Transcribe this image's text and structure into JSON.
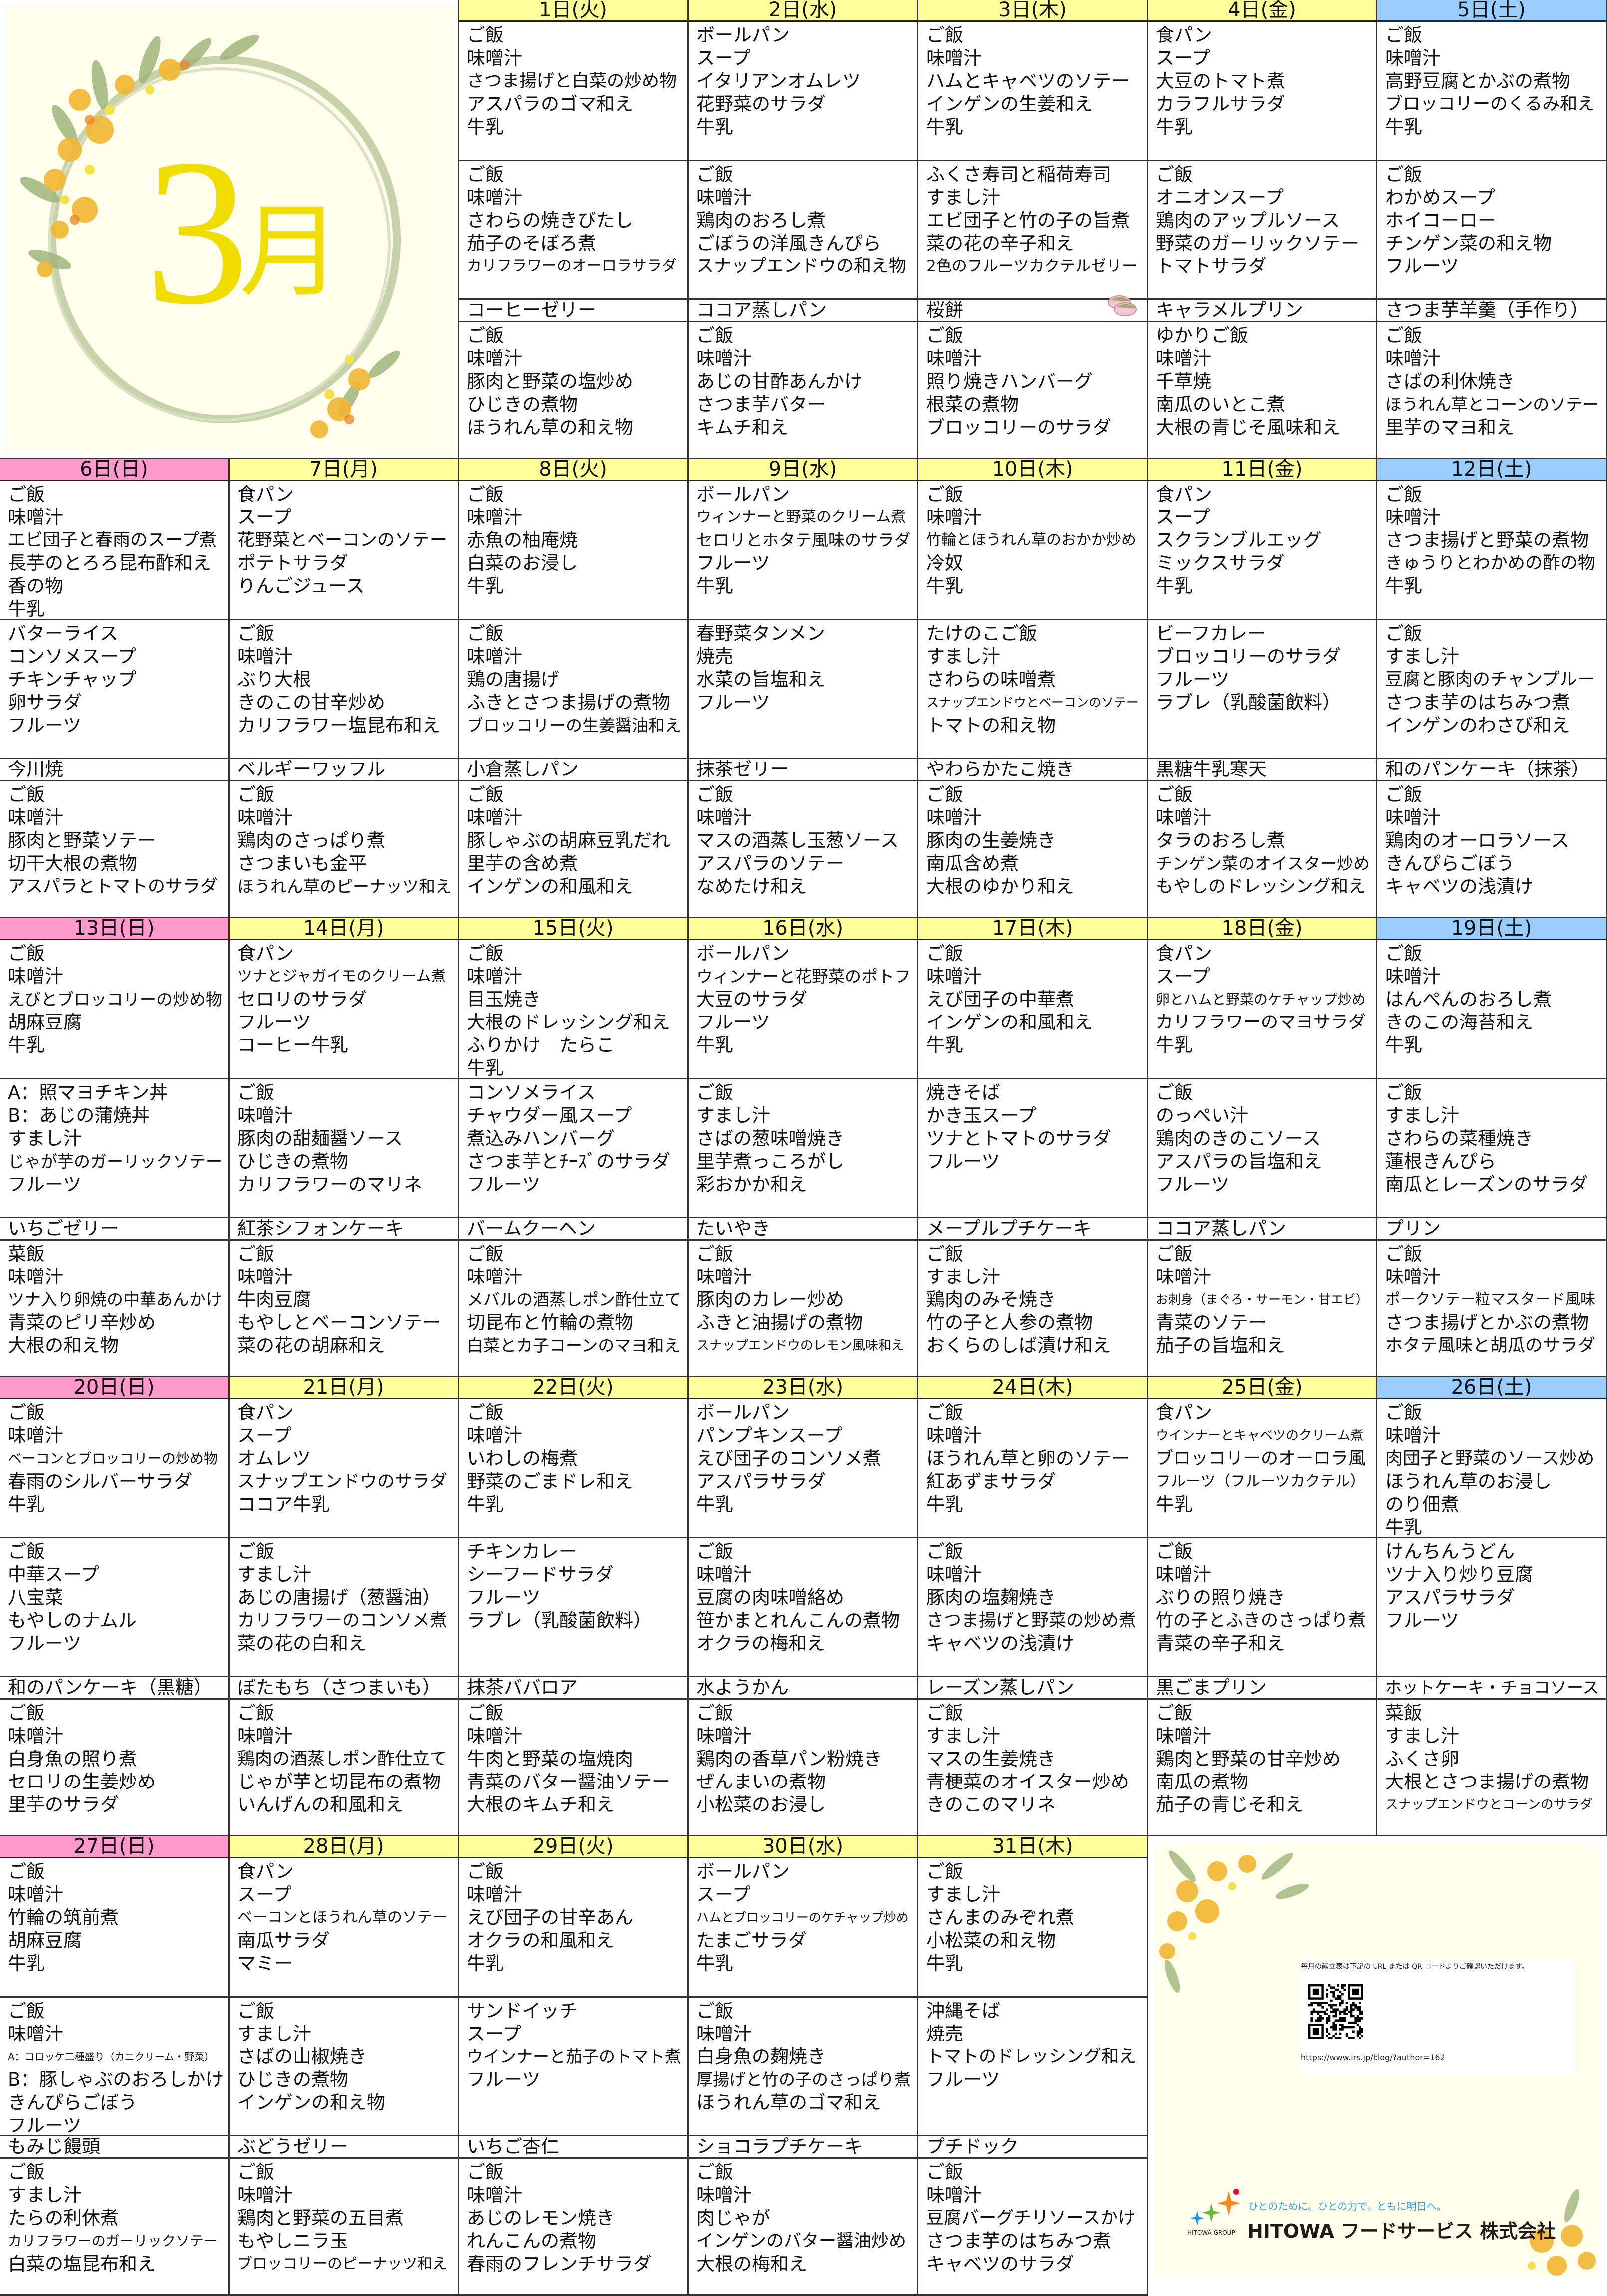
{
  "title": {
    "month_number": "3",
    "month_kanji": "月"
  },
  "colors": {
    "weekday_header": "#FFFF99",
    "sunday_header": "#FF99CC",
    "saturday_header": "#99CCFF",
    "month_text": "#F0DE00",
    "tagline": "#3AA0E0"
  },
  "weeks": [
    {
      "days": [
        {
          "header": "1日(火)",
          "b1": [
            "ご飯",
            "味噌汁",
            "さつま揚げと白菜の炒め物",
            "アスパラのゴマ和え",
            "牛乳"
          ],
          "b2": [
            "ご飯",
            "味噌汁",
            "さわらの焼きびたし",
            "茄子のそぼろ煮",
            "カリフラワーのオーロラサラダ"
          ],
          "snack": "コーヒーゼリー",
          "b3": [
            "ご飯",
            "味噌汁",
            "豚肉と野菜の塩炒め",
            "ひじきの煮物",
            "ほうれん草の和え物"
          ]
        },
        {
          "header": "2日(水)",
          "b1": [
            "ボールパン",
            "スープ",
            "イタリアンオムレツ",
            "花野菜のサラダ",
            "牛乳"
          ],
          "b2": [
            "ご飯",
            "味噌汁",
            "鶏肉のおろし煮",
            "ごぼうの洋風きんぴら",
            "スナップエンドウの和え物"
          ],
          "snack": "ココア蒸しパン",
          "b3": [
            "ご飯",
            "味噌汁",
            "あじの甘酢あんかけ",
            "さつま芋バター",
            "キムチ和え"
          ]
        },
        {
          "header": "3日(木)",
          "b1": [
            "ご飯",
            "味噌汁",
            "ハムとキャベツのソテー",
            "インゲンの生姜和え",
            "牛乳"
          ],
          "b2": [
            "ふくさ寿司と稲荷寿司",
            "すまし汁",
            "エビ団子と竹の子の旨煮",
            "菜の花の辛子和え",
            "2色のフルーツカクテルゼリー"
          ],
          "snack": "桜餅",
          "b3": [
            "ご飯",
            "味噌汁",
            "照り焼きハンバーグ",
            "根菜の煮物",
            "ブロッコリーのサラダ"
          ]
        },
        {
          "header": "4日(金)",
          "b1": [
            "食パン",
            "スープ",
            "大豆のトマト煮",
            "カラフルサラダ",
            "牛乳"
          ],
          "b2": [
            "ご飯",
            "オニオンスープ",
            "鶏肉のアップルソース",
            "野菜のガーリックソテー",
            "トマトサラダ"
          ],
          "snack": "キャラメルプリン",
          "b3": [
            "ゆかりご飯",
            "味噌汁",
            "千草焼",
            "南瓜のいとこ煮",
            "大根の青じそ風味和え"
          ]
        },
        {
          "header": "5日(土)",
          "b1": [
            "ご飯",
            "味噌汁",
            "高野豆腐とかぶの煮物",
            "ブロッコリーのくるみ和え",
            "牛乳"
          ],
          "b2": [
            "ご飯",
            "わかめスープ",
            "ホイコーロー",
            "チンゲン菜の和え物",
            "フルーツ"
          ],
          "snack": "さつま芋羊羹（手作り）",
          "b3": [
            "ご飯",
            "味噌汁",
            "さばの利休焼き",
            "ほうれん草とコーンのソテー",
            "里芋のマヨ和え"
          ]
        }
      ]
    },
    {
      "days": [
        {
          "header": "6日(日)",
          "b1": [
            "ご飯",
            "味噌汁",
            "エビ団子と春雨のスープ煮",
            "長芋のとろろ昆布酢和え",
            "香の物",
            "牛乳"
          ],
          "b2": [
            "バターライス",
            "コンソメスープ",
            "チキンチャップ",
            "卵サラダ",
            "フルーツ"
          ],
          "snack": "今川焼",
          "b3": [
            "ご飯",
            "味噌汁",
            "豚肉と野菜ソテー",
            "切干大根の煮物",
            "アスパラとトマトのサラダ"
          ]
        },
        {
          "header": "7日(月)",
          "b1": [
            "食パン",
            "スープ",
            "花野菜とベーコンのソテー",
            "ポテトサラダ",
            "りんごジュース"
          ],
          "b2": [
            "ご飯",
            "味噌汁",
            "ぶり大根",
            "きのこの甘辛炒め",
            "カリフラワー塩昆布和え"
          ],
          "snack": "ベルギーワッフル",
          "b3": [
            "ご飯",
            "味噌汁",
            "鶏肉のさっぱり煮",
            "さつまいも金平",
            "ほうれん草のピーナッツ和え"
          ]
        },
        {
          "header": "8日(火)",
          "b1": [
            "ご飯",
            "味噌汁",
            "赤魚の柚庵焼",
            "白菜のお浸し",
            "牛乳"
          ],
          "b2": [
            "ご飯",
            "味噌汁",
            "鶏の唐揚げ",
            "ふきとさつま揚げの煮物",
            "ブロッコリーの生姜醤油和え"
          ],
          "snack": "小倉蒸しパン",
          "b3": [
            "ご飯",
            "味噌汁",
            "豚しゃぶの胡麻豆乳だれ",
            "里芋の含め煮",
            "インゲンの和風和え"
          ]
        },
        {
          "header": "9日(水)",
          "b1": [
            "ボールパン",
            "ウィンナーと野菜のクリーム煮",
            "セロリとホタテ風味のサラダ",
            "フルーツ",
            "牛乳"
          ],
          "b2": [
            "春野菜タンメン",
            "焼売",
            "水菜の旨塩和え",
            "フルーツ"
          ],
          "snack": "抹茶ゼリー",
          "b3": [
            "ご飯",
            "味噌汁",
            "マスの酒蒸し玉葱ソース",
            "アスパラのソテー",
            "なめたけ和え"
          ]
        },
        {
          "header": "10日(木)",
          "b1": [
            "ご飯",
            "味噌汁",
            "竹輪とほうれん草のおかか炒め",
            "冷奴",
            "牛乳"
          ],
          "b2": [
            "たけのこご飯",
            "すまし汁",
            "さわらの味噌煮",
            "スナップエンドウとベーコンのソテー",
            "トマトの和え物"
          ],
          "snack": "やわらかたこ焼き",
          "b3": [
            "ご飯",
            "味噌汁",
            "豚肉の生姜焼き",
            "南瓜含め煮",
            "大根のゆかり和え"
          ]
        },
        {
          "header": "11日(金)",
          "b1": [
            "食パン",
            "スープ",
            "スクランブルエッグ",
            "ミックスサラダ",
            "牛乳"
          ],
          "b2": [
            "ビーフカレー",
            "ブロッコリーのサラダ",
            "フルーツ",
            "ラブレ（乳酸菌飲料）"
          ],
          "snack": "黒糖牛乳寒天",
          "b3": [
            "ご飯",
            "味噌汁",
            "タラのおろし煮",
            "チンゲン菜のオイスター炒め",
            "もやしのドレッシング和え"
          ]
        },
        {
          "header": "12日(土)",
          "b1": [
            "ご飯",
            "味噌汁",
            "さつま揚げと野菜の煮物",
            "きゅうりとわかめの酢の物",
            "牛乳"
          ],
          "b2": [
            "ご飯",
            "すまし汁",
            "豆腐と豚肉のチャンプルー",
            "さつま芋のはちみつ煮",
            "インゲンのわさび和え"
          ],
          "snack": "和のパンケーキ（抹茶）",
          "b3": [
            "ご飯",
            "味噌汁",
            "鶏肉のオーロラソース",
            "きんぴらごぼう",
            "キャベツの浅漬け"
          ]
        }
      ]
    },
    {
      "days": [
        {
          "header": "13日(日)",
          "b1": [
            "ご飯",
            "味噌汁",
            "えびとブロッコリーの炒め物",
            "胡麻豆腐",
            "牛乳"
          ],
          "b2": [
            "A：照マヨチキン丼",
            "B：あじの蒲焼丼",
            "すまし汁",
            "じゃが芋のガーリックソテー",
            "フルーツ"
          ],
          "snack": "いちごゼリー",
          "b3": [
            "菜飯",
            "味噌汁",
            "ツナ入り卵焼の中華あんかけ",
            "青菜のピリ辛炒め",
            "大根の和え物"
          ]
        },
        {
          "header": "14日(月)",
          "b1": [
            "食パン",
            "ツナとジャガイモのクリーム煮",
            "セロリのサラダ",
            "フルーツ",
            "コーヒー牛乳"
          ],
          "b2": [
            "ご飯",
            "味噌汁",
            "豚肉の甜麺醤ソース",
            "ひじきの煮物",
            "カリフラワーのマリネ"
          ],
          "snack": "紅茶シフォンケーキ",
          "b3": [
            "ご飯",
            "味噌汁",
            "牛肉豆腐",
            "もやしとベーコンソテー",
            "菜の花の胡麻和え"
          ]
        },
        {
          "header": "15日(火)",
          "b1": [
            "ご飯",
            "味噌汁",
            "目玉焼き",
            "大根のドレッシング和え",
            "ふりかけ　たらこ",
            "牛乳"
          ],
          "b2": [
            "コンソメライス",
            "チャウダー風スープ",
            "煮込みハンバーグ",
            "さつま芋とﾁｰｽﾞのサラダ",
            "フルーツ"
          ],
          "snack": "バームクーヘン",
          "b3": [
            "ご飯",
            "味噌汁",
            "メバルの酒蒸しポン酢仕立て",
            "切昆布と竹輪の煮物",
            "白菜とカ子コーンのマヨ和え"
          ]
        },
        {
          "header": "16日(水)",
          "b1": [
            "ボールパン",
            "ウィンナーと花野菜のポトフ",
            "大豆のサラダ",
            "フルーツ",
            "牛乳"
          ],
          "b2": [
            "ご飯",
            "すまし汁",
            "さばの葱味噌焼き",
            "里芋煮っころがし",
            "彩おかか和え"
          ],
          "snack": "たいやき",
          "b3": [
            "ご飯",
            "味噌汁",
            "豚肉のカレー炒め",
            "ふきと油揚げの煮物",
            "スナップエンドウのレモン風味和え"
          ]
        },
        {
          "header": "17日(木)",
          "b1": [
            "ご飯",
            "味噌汁",
            "えび団子の中華煮",
            "インゲンの和風和え",
            "牛乳"
          ],
          "b2": [
            "焼きそば",
            "かき玉スープ",
            "ツナとトマトのサラダ",
            "フルーツ"
          ],
          "snack": "メープルプチケーキ",
          "b3": [
            "ご飯",
            "すまし汁",
            "鶏肉のみそ焼き",
            "竹の子と人参の煮物",
            "おくらのしば漬け和え"
          ]
        },
        {
          "header": "18日(金)",
          "b1": [
            "食パン",
            "スープ",
            "卵とハムと野菜のケチャップ炒め",
            "カリフラワーのマヨサラダ",
            "牛乳"
          ],
          "b2": [
            "ご飯",
            "のっぺい汁",
            "鶏肉のきのこソース",
            "アスパラの旨塩和え",
            "フルーツ"
          ],
          "snack": "ココア蒸しパン",
          "b3": [
            "ご飯",
            "味噌汁",
            "お刺身（まぐろ・サーモン・甘エビ）",
            "青菜のソテー",
            "茄子の旨塩和え"
          ]
        },
        {
          "header": "19日(土)",
          "b1": [
            "ご飯",
            "味噌汁",
            "はんぺんのおろし煮",
            "きのこの海苔和え",
            "牛乳"
          ],
          "b2": [
            "ご飯",
            "すまし汁",
            "さわらの菜種焼き",
            "蓮根きんぴら",
            "南瓜とレーズンのサラダ"
          ],
          "snack": "プリン",
          "b3": [
            "ご飯",
            "味噌汁",
            "ポークソテー粒マスタード風味",
            "さつま揚げとかぶの煮物",
            "ホタテ風味と胡瓜のサラダ"
          ]
        }
      ]
    },
    {
      "days": [
        {
          "header": "20日(日)",
          "b1": [
            "ご飯",
            "味噌汁",
            "ベーコンとブロッコリーの炒め物",
            "春雨のシルバーサラダ",
            "牛乳"
          ],
          "b2": [
            "ご飯",
            "中華スープ",
            "八宝菜",
            "もやしのナムル",
            "フルーツ"
          ],
          "snack": "和のパンケーキ（黒糖）",
          "b3": [
            "ご飯",
            "味噌汁",
            "白身魚の照り煮",
            "セロリの生姜炒め",
            "里芋のサラダ"
          ]
        },
        {
          "header": "21日(月)",
          "b1": [
            "食パン",
            "スープ",
            "オムレツ",
            "スナップエンドウのサラダ",
            "ココア牛乳"
          ],
          "b2": [
            "ご飯",
            "すまし汁",
            "あじの唐揚げ（葱醤油）",
            "カリフラワーのコンソメ煮",
            "菜の花の白和え"
          ],
          "snack": "ぼたもち（さつまいも）",
          "b3": [
            "ご飯",
            "味噌汁",
            "鶏肉の酒蒸しポン酢仕立て",
            "じゃが芋と切昆布の煮物",
            "いんげんの和風和え"
          ]
        },
        {
          "header": "22日(火)",
          "b1": [
            "ご飯",
            "味噌汁",
            "いわしの梅煮",
            "野菜のごまドレ和え",
            "牛乳"
          ],
          "b2": [
            "チキンカレー",
            "シーフードサラダ",
            "フルーツ",
            "ラブレ（乳酸菌飲料）"
          ],
          "snack": "抹茶ババロア",
          "b3": [
            "ご飯",
            "味噌汁",
            "牛肉と野菜の塩焼肉",
            "青菜のバター醤油ソテー",
            "大根のキムチ和え"
          ]
        },
        {
          "header": "23日(水)",
          "b1": [
            "ボールパン",
            "パンプキンスープ",
            "えび団子のコンソメ煮",
            "アスパラサラダ",
            "牛乳"
          ],
          "b2": [
            "ご飯",
            "味噌汁",
            "豆腐の肉味噌絡め",
            "笹かまとれんこんの煮物",
            "オクラの梅和え"
          ],
          "snack": "水ようかん",
          "b3": [
            "ご飯",
            "味噌汁",
            "鶏肉の香草パン粉焼き",
            "ぜんまいの煮物",
            "小松菜のお浸し"
          ]
        },
        {
          "header": "24日(木)",
          "b1": [
            "ご飯",
            "味噌汁",
            "ほうれん草と卵のソテー",
            "紅あずまサラダ",
            "牛乳"
          ],
          "b2": [
            "ご飯",
            "味噌汁",
            "豚肉の塩麹焼き",
            "さつま揚げと野菜の炒め煮",
            "キャベツの浅漬け"
          ],
          "snack": "レーズン蒸しパン",
          "b3": [
            "ご飯",
            "すまし汁",
            "マスの生姜焼き",
            "青梗菜のオイスター炒め",
            "きのこのマリネ"
          ]
        },
        {
          "header": "25日(金)",
          "b1": [
            "食パン",
            "ウインナーとキャベツのクリーム煮",
            "ブロッコリーのオーロラ風",
            "フルーツ（フルーツカクテル）",
            "牛乳"
          ],
          "b2": [
            "ご飯",
            "味噌汁",
            "ぶりの照り焼き",
            "竹の子とふきのさっぱり煮",
            "青菜の辛子和え"
          ],
          "snack": "黒ごまプリン",
          "b3": [
            "ご飯",
            "味噌汁",
            "鶏肉と野菜の甘辛炒め",
            "南瓜の煮物",
            "茄子の青じそ和え"
          ]
        },
        {
          "header": "26日(土)",
          "b1": [
            "ご飯",
            "味噌汁",
            "肉団子と野菜のソース炒め",
            "ほうれん草のお浸し",
            "のり佃煮",
            "牛乳"
          ],
          "b2": [
            "けんちんうどん",
            "ツナ入り炒り豆腐",
            "アスパラサラダ",
            "フルーツ"
          ],
          "snack": "ホットケーキ・チョコソース",
          "b3": [
            "菜飯",
            "すまし汁",
            "ふくさ卵",
            "大根とさつま揚げの煮物",
            "スナップエンドウとコーンのサラダ"
          ]
        }
      ]
    },
    {
      "days": [
        {
          "header": "27日(日)",
          "b1": [
            "ご飯",
            "味噌汁",
            "竹輪の筑前煮",
            "胡麻豆腐",
            "牛乳"
          ],
          "b2": [
            "ご飯",
            "味噌汁",
            "A：コロッケ二種盛り（カニクリーム・野菜）",
            "B：豚しゃぶのおろしかけ",
            "きんぴらごぼう",
            "フルーツ"
          ],
          "snack": "もみじ饅頭",
          "b3": [
            "ご飯",
            "すまし汁",
            "たらの利休煮",
            "カリフラワーのガーリックソテー",
            "白菜の塩昆布和え"
          ]
        },
        {
          "header": "28日(月)",
          "b1": [
            "食パン",
            "スープ",
            "ベーコンとほうれん草のソテー",
            "南瓜サラダ",
            "マミー"
          ],
          "b2": [
            "ご飯",
            "すまし汁",
            "さばの山椒焼き",
            "ひじきの煮物",
            "インゲンの和え物"
          ],
          "snack": "ぶどうゼリー",
          "b3": [
            "ご飯",
            "味噌汁",
            "鶏肉と野菜の五目煮",
            "もやしニラ玉",
            "ブロッコリーのピーナッツ和え"
          ]
        },
        {
          "header": "29日(火)",
          "b1": [
            "ご飯",
            "味噌汁",
            "えび団子の甘辛あん",
            "オクラの和風和え",
            "牛乳"
          ],
          "b2": [
            "サンドイッチ",
            "スープ",
            "ウインナーと茄子のトマト煮",
            "フルーツ"
          ],
          "snack": "いちご杏仁",
          "b3": [
            "ご飯",
            "味噌汁",
            "あじのレモン焼き",
            "れんこんの煮物",
            "春雨のフレンチサラダ"
          ]
        },
        {
          "header": "30日(水)",
          "b1": [
            "ボールパン",
            "スープ",
            "ハムとブロッコリーのケチャップ炒め",
            "たまごサラダ",
            "牛乳"
          ],
          "b2": [
            "ご飯",
            "味噌汁",
            "白身魚の麹焼き",
            "厚揚げと竹の子のさっぱり煮",
            "ほうれん草のゴマ和え"
          ],
          "snack": "ショコラプチケーキ",
          "b3": [
            "ご飯",
            "味噌汁",
            "肉じゃが",
            "インゲンのバター醤油炒め",
            "大根の梅和え"
          ]
        },
        {
          "header": "31日(木)",
          "b1": [
            "ご飯",
            "すまし汁",
            "さんまのみぞれ煮",
            "小松菜の和え物",
            "牛乳"
          ],
          "b2": [
            "沖縄そば",
            "焼売",
            "トマトのドレッシング和え",
            "フルーツ"
          ],
          "snack": "プチドック",
          "b3": [
            "ご飯",
            "味噌汁",
            "豆腐バーグチリソースかけ",
            "さつま芋のはちみつ煮",
            "キャベツのサラダ"
          ]
        }
      ]
    }
  ],
  "footer": {
    "qr_note": "毎月の献立表は下記の URL または QR コードよりご確認いただけます。",
    "url": "https://www.irs.jp/blog/?author=162",
    "tagline": "ひとのために。ひとの力で。ともに明日へ。",
    "company": "HITOWA フードサービス 株式会社",
    "group": "HITOWA GROUP"
  }
}
